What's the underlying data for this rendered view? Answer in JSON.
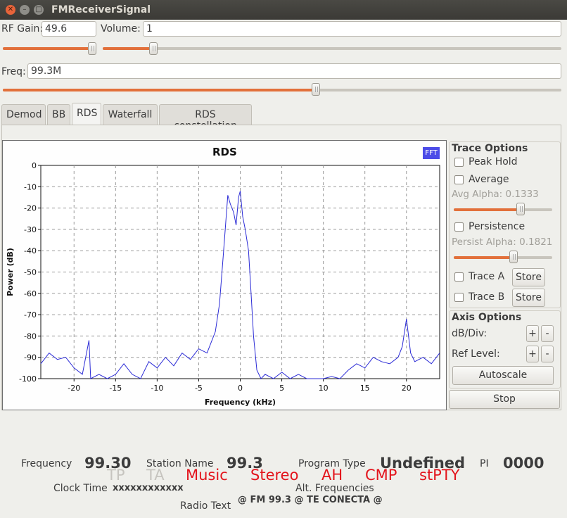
{
  "window": {
    "title": "FMReceiverSignal"
  },
  "controls": {
    "rf_gain_label": "RF Gain:",
    "rf_gain_value": "49.6",
    "volume_label": "Volume:",
    "volume_value": "1",
    "freq_label": "Freq:",
    "freq_value": "99.3M",
    "rf_gain_slider": 0.96,
    "volume_slider": 0.11,
    "freq_slider": 0.56
  },
  "tabs": [
    "Demod",
    "BB",
    "RDS",
    "Waterfall",
    "RDS constellation"
  ],
  "active_tab": "RDS",
  "plot": {
    "fft_badge": "FFT"
  },
  "chart_data": {
    "type": "line",
    "title": "RDS",
    "xlabel": "Frequency (kHz)",
    "ylabel": "Power (dB)",
    "xlim": [
      -24,
      24
    ],
    "ylim": [
      -100,
      0
    ],
    "x_ticks": [
      "-20",
      "-15",
      "-10",
      "-5",
      "0",
      "5",
      "10",
      "15",
      "20"
    ],
    "y_ticks": [
      "0",
      "-10",
      "-20",
      "-30",
      "-40",
      "-50",
      "-60",
      "-70",
      "-80",
      "-90",
      "-100"
    ],
    "grid": true,
    "series": [
      {
        "color": "#2b2bd6",
        "x": [
          -24,
          -23,
          -22,
          -21,
          -20,
          -19,
          -18.2,
          -18,
          -17,
          -16,
          -15,
          -14,
          -13,
          -12,
          -11,
          -10,
          -9,
          -8,
          -7,
          -6,
          -5,
          -4,
          -3,
          -2.5,
          -2,
          -1.5,
          -1.2,
          -0.8,
          -0.5,
          -0.2,
          0,
          0.3,
          0.6,
          1,
          1.3,
          1.6,
          2,
          2.5,
          3,
          4,
          5,
          6,
          7,
          8,
          9,
          10,
          11,
          12,
          13,
          14,
          15,
          16,
          17,
          18,
          19,
          19.5,
          20,
          20.5,
          21,
          22,
          23,
          24
        ],
        "values": [
          -93,
          -88,
          -91,
          -90,
          -95,
          -98,
          -82,
          -100,
          -98,
          -100,
          -98,
          -93,
          -98,
          -100,
          -92,
          -95,
          -90,
          -94,
          -88,
          -91,
          -86,
          -88,
          -78,
          -65,
          -40,
          -14,
          -18,
          -22,
          -28,
          -15,
          -12,
          -24,
          -30,
          -40,
          -60,
          -80,
          -96,
          -100,
          -98,
          -100,
          -97,
          -100,
          -98,
          -100,
          -100,
          -100,
          -99,
          -100,
          -96,
          -93,
          -95,
          -90,
          -92,
          -93,
          -90,
          -85,
          -72,
          -88,
          -92,
          -90,
          -93,
          -88
        ]
      }
    ]
  },
  "trace_options": {
    "title": "Trace Options",
    "peak_hold": "Peak Hold",
    "average": "Average",
    "avg_alpha": "Avg Alpha: 0.1333",
    "avg_alpha_slider": 0.68,
    "persistence": "Persistence",
    "persist_alpha": "Persist Alpha: 0.1821",
    "persist_alpha_slider": 0.61,
    "trace_a": "Trace A",
    "trace_b": "Trace B",
    "store": "Store"
  },
  "axis_options": {
    "title": "Axis Options",
    "db_div": "dB/Div:",
    "ref_level": "Ref Level:",
    "plus": "+",
    "minus": "-",
    "autoscale": "Autoscale"
  },
  "stop_label": "Stop",
  "info": {
    "frequency_label": "Frequency",
    "frequency_value": "99.30",
    "station_label": "Station Name",
    "station_value": "99.3",
    "program_type_label": "Program Type",
    "program_type_value": "Undefined",
    "pi_label": "PI",
    "pi_value": "0000",
    "flags": {
      "tp": "TP",
      "ta": "TA",
      "music": "Music",
      "stereo": "Stereo",
      "ah": "AH",
      "cmp": "CMP",
      "stpty": "stPTY"
    },
    "clock_label": "Clock Time",
    "clock_value": "xxxxxxxxxxxx",
    "alt_freq_label": "Alt. Frequencies",
    "radio_text_label": "Radio Text",
    "radio_text_value": "@ FM 99.3 @ TE CONECTA @"
  }
}
